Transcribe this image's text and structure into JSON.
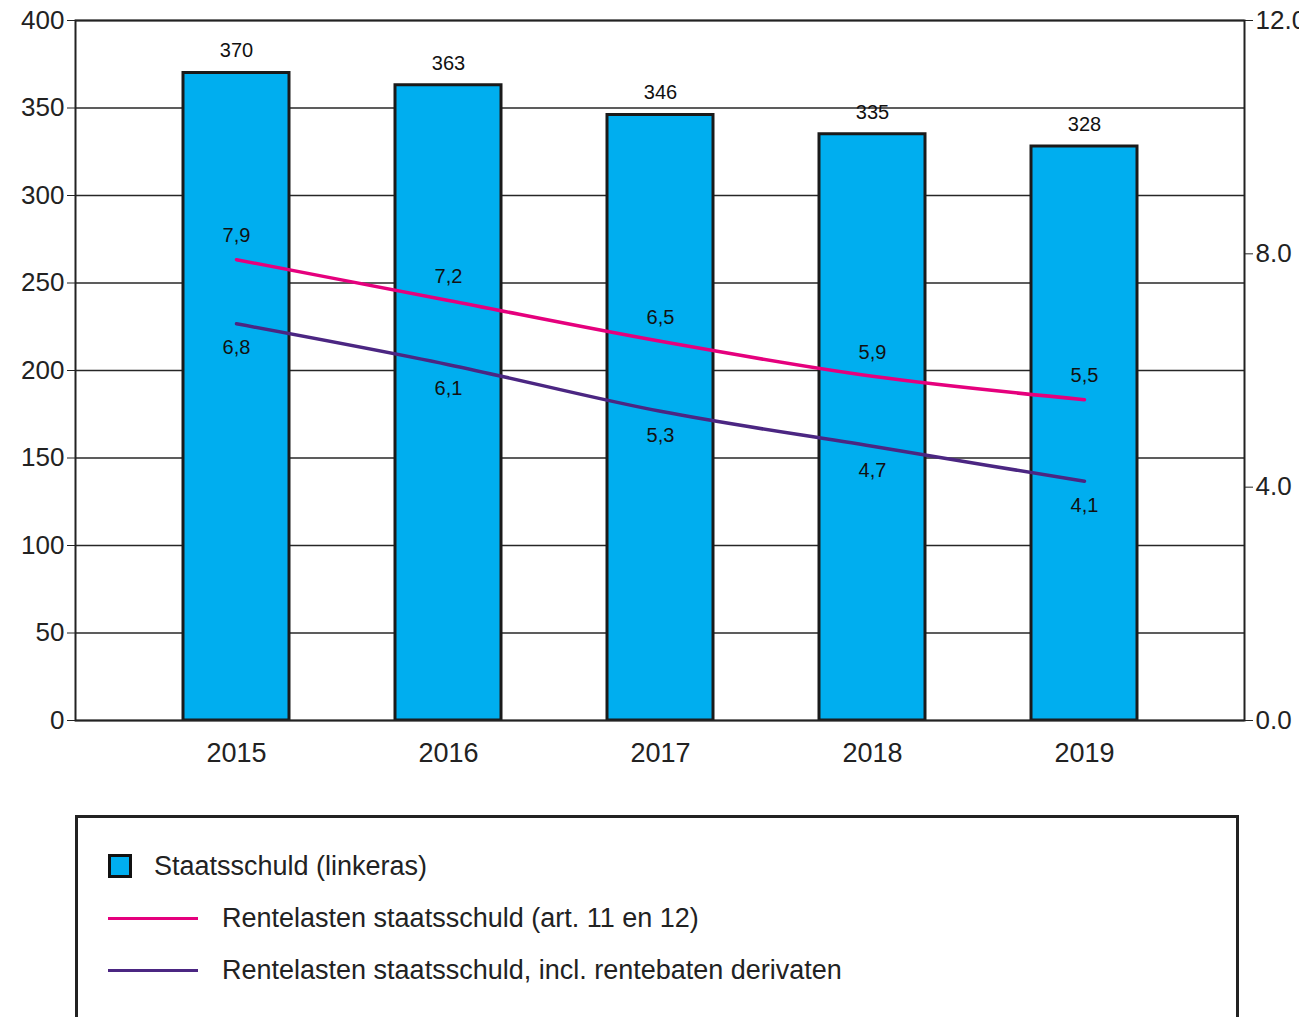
{
  "chart_data": {
    "type": "bar",
    "categories": [
      "2015",
      "2016",
      "2017",
      "2018",
      "2019"
    ],
    "series": [
      {
        "name": "Staatsschuld (linkeras)",
        "type": "bar",
        "color": "#00aeef",
        "values": [
          370,
          363,
          346,
          335,
          328
        ]
      },
      {
        "name": "Rentelasten staatsschuld (art. 11 en 12)",
        "type": "line",
        "axis": "y2",
        "color": "#e5007d",
        "values": [
          7.9,
          7.2,
          6.5,
          5.9,
          5.5
        ],
        "value_labels": [
          "7,9",
          "7,2",
          "6,5",
          "5,9",
          "5,5"
        ]
      },
      {
        "name": "Rentelasten staatsschuld, incl. rentebaten derivaten",
        "type": "line",
        "axis": "y2",
        "color": "#4b2682",
        "values": [
          6.8,
          6.1,
          5.3,
          4.7,
          4.1
        ],
        "value_labels": [
          "6,8",
          "6,1",
          "5,3",
          "4,7",
          "4,1"
        ]
      }
    ],
    "ylim": [
      0,
      400
    ],
    "yticks": [
      0,
      50,
      100,
      150,
      200,
      250,
      300,
      350,
      400
    ],
    "y2lim": [
      0,
      12
    ],
    "y2ticks": [
      0,
      4,
      8,
      12
    ],
    "grid": true,
    "data_labels": true,
    "legend": "bottom"
  }
}
